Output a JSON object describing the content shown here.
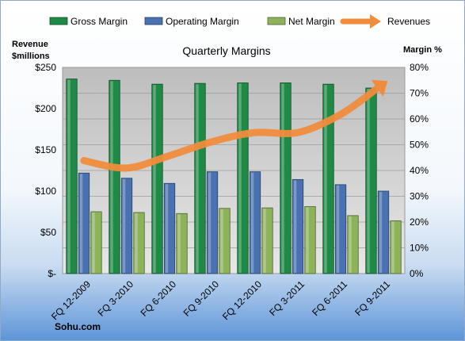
{
  "chart_data": {
    "type": "bar",
    "title": "Quarterly Margins",
    "categories": [
      "FQ 12-2009",
      "FQ 3-2010",
      "FQ 6-2010",
      "FQ 9-2010",
      "FQ 12-2010",
      "FQ 3-2011",
      "FQ 6-2011",
      "FQ 9-2011"
    ],
    "series": [
      {
        "name": "Gross Margin",
        "type": "bar",
        "axis": "right",
        "color": "#1e8a45",
        "values": [
          75.5,
          75,
          73.5,
          73.8,
          74,
          74,
          73.5,
          72
        ]
      },
      {
        "name": "Operating Margin",
        "type": "bar",
        "axis": "right",
        "color": "#4a72b0",
        "values": [
          39,
          37,
          35,
          39.5,
          39.5,
          36.5,
          34.5,
          32
        ]
      },
      {
        "name": "Net Margin",
        "type": "bar",
        "axis": "right",
        "color": "#8db35a",
        "values": [
          24,
          23.7,
          23.3,
          25.3,
          25.5,
          26,
          22.5,
          20.5
        ]
      },
      {
        "name": "Revenues",
        "type": "line",
        "axis": "left",
        "color": "#f08c3c",
        "values": [
          137,
          128,
          143,
          160,
          171,
          171,
          193,
          230
        ]
      }
    ],
    "ylabel_left": "Revenue\n$millions",
    "ylabel_right": "Margin %",
    "ylim_left": [
      0,
      250
    ],
    "ylim_right": [
      0,
      80
    ],
    "yticks_left": [
      "$-",
      "$50",
      "$100",
      "$150",
      "$200",
      "$250"
    ],
    "yticks_right": [
      "0%",
      "10%",
      "20%",
      "30%",
      "40%",
      "50%",
      "60%",
      "70%",
      "80%"
    ],
    "legend_position": "top",
    "grid": true,
    "source": "Sohu.com"
  }
}
